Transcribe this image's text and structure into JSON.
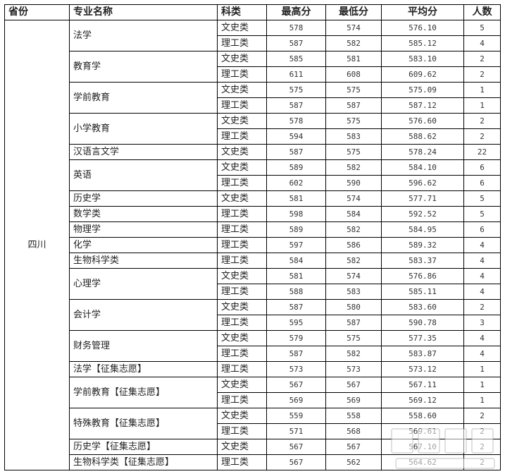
{
  "headers": [
    "省份",
    "专业名称",
    "科类",
    "最高分",
    "最低分",
    "平均分",
    "人数"
  ],
  "province": "四川",
  "majors": [
    {
      "name": "法学",
      "rows": [
        [
          "文史类",
          "578",
          "574",
          "576.10",
          "5"
        ],
        [
          "理工类",
          "587",
          "582",
          "585.12",
          "4"
        ]
      ]
    },
    {
      "name": "教育学",
      "rows": [
        [
          "文史类",
          "585",
          "581",
          "583.10",
          "2"
        ],
        [
          "理工类",
          "611",
          "608",
          "609.62",
          "2"
        ]
      ]
    },
    {
      "name": "学前教育",
      "rows": [
        [
          "文史类",
          "575",
          "575",
          "575.09",
          "1"
        ],
        [
          "理工类",
          "587",
          "587",
          "587.12",
          "1"
        ]
      ]
    },
    {
      "name": "小学教育",
      "rows": [
        [
          "文史类",
          "578",
          "575",
          "576.60",
          "2"
        ],
        [
          "理工类",
          "594",
          "583",
          "588.62",
          "2"
        ]
      ]
    },
    {
      "name": "汉语言文学",
      "rows": [
        [
          "文史类",
          "587",
          "575",
          "578.24",
          "22"
        ]
      ]
    },
    {
      "name": "英语",
      "rows": [
        [
          "文史类",
          "589",
          "582",
          "584.10",
          "6"
        ],
        [
          "理工类",
          "602",
          "590",
          "596.62",
          "6"
        ]
      ]
    },
    {
      "name": "历史学",
      "rows": [
        [
          "文史类",
          "581",
          "574",
          "577.71",
          "5"
        ]
      ]
    },
    {
      "name": "数学类",
      "rows": [
        [
          "理工类",
          "598",
          "584",
          "592.52",
          "5"
        ]
      ]
    },
    {
      "name": "物理学",
      "rows": [
        [
          "理工类",
          "589",
          "582",
          "584.95",
          "6"
        ]
      ]
    },
    {
      "name": "化学",
      "rows": [
        [
          "理工类",
          "597",
          "586",
          "589.32",
          "4"
        ]
      ]
    },
    {
      "name": "生物科学类",
      "rows": [
        [
          "理工类",
          "584",
          "582",
          "583.37",
          "4"
        ]
      ]
    },
    {
      "name": "心理学",
      "rows": [
        [
          "文史类",
          "581",
          "574",
          "576.86",
          "4"
        ],
        [
          "理工类",
          "588",
          "583",
          "585.11",
          "4"
        ]
      ]
    },
    {
      "name": "会计学",
      "rows": [
        [
          "文史类",
          "587",
          "580",
          "583.60",
          "2"
        ],
        [
          "理工类",
          "595",
          "587",
          "590.78",
          "3"
        ]
      ]
    },
    {
      "name": "财务管理",
      "rows": [
        [
          "文史类",
          "579",
          "575",
          "577.35",
          "4"
        ],
        [
          "理工类",
          "587",
          "582",
          "583.87",
          "4"
        ]
      ]
    },
    {
      "name": "法学【征集志愿】",
      "rows": [
        [
          "理工类",
          "573",
          "573",
          "573.12",
          "1"
        ]
      ]
    },
    {
      "name": "学前教育【征集志愿】",
      "rows": [
        [
          "文史类",
          "567",
          "567",
          "567.11",
          "1"
        ],
        [
          "理工类",
          "569",
          "569",
          "569.12",
          "1"
        ]
      ]
    },
    {
      "name": "特殊教育【征集志愿】",
      "rows": [
        [
          "文史类",
          "559",
          "558",
          "558.60",
          "2"
        ],
        [
          "理工类",
          "571",
          "568",
          "569.61",
          "2"
        ]
      ]
    },
    {
      "name": "历史学【征集志愿】",
      "rows": [
        [
          "文史类",
          "567",
          "567",
          "567.10",
          "2"
        ]
      ]
    },
    {
      "name": "生物科学类【征集志愿】",
      "rows": [
        [
          "理工类",
          "567",
          "562",
          "564.62",
          "2"
        ]
      ]
    }
  ],
  "watermark": {
    "title": "留学社区",
    "url": "bbs.liuxue86.com"
  }
}
